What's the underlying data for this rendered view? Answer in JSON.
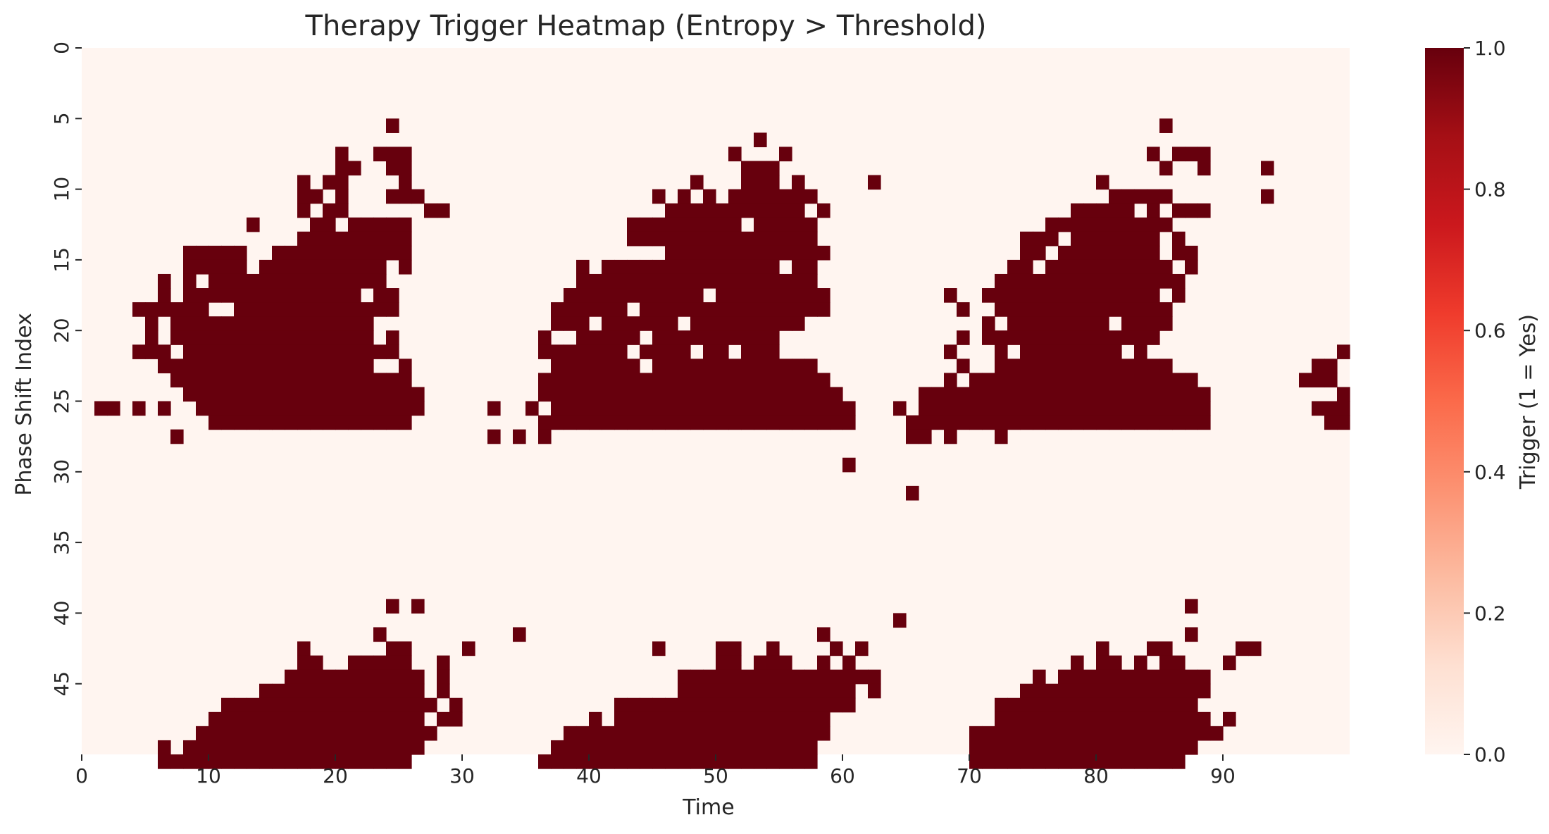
{
  "chart_data": {
    "type": "heatmap",
    "title": "Therapy Trigger Heatmap (Entropy > Threshold)",
    "xlabel": "Time",
    "ylabel": "Phase Shift Index",
    "x_range": [
      0,
      100
    ],
    "y_range": [
      0,
      50
    ],
    "x_ticks": [
      0,
      10,
      20,
      30,
      40,
      50,
      60,
      70,
      80,
      90
    ],
    "y_ticks": [
      0,
      5,
      10,
      15,
      20,
      25,
      30,
      35,
      40,
      45
    ],
    "colorbar": {
      "label": "Trigger (1 = Yes)",
      "ticks": [
        "0.0",
        "0.2",
        "0.4",
        "0.6",
        "0.8",
        "1.0"
      ],
      "colors": [
        "#fff5f0",
        "#fee0d2",
        "#fcbba1",
        "#fc9272",
        "#fb6a4a",
        "#ef3b2c",
        "#cb181d",
        "#a50f15",
        "#67000d"
      ]
    },
    "zero_color": "#fff5f0",
    "one_color": "#67000d",
    "trigger_rows": [
      [],
      [],
      [],
      [],
      [],
      [
        24,
        85
      ],
      [
        53
      ],
      [
        20,
        23,
        24,
        25,
        51,
        55,
        84,
        86,
        87,
        88
      ],
      [
        20,
        21,
        24,
        25,
        52,
        53,
        54,
        85,
        88,
        93
      ],
      [
        17,
        19,
        20,
        25,
        48,
        52,
        53,
        54,
        56,
        62,
        80
      ],
      [
        17,
        18,
        20,
        24,
        25,
        26,
        45,
        47,
        49,
        51,
        52,
        53,
        54,
        55,
        56,
        57,
        81,
        82,
        83,
        84,
        85,
        93
      ],
      [
        17,
        19,
        20,
        27,
        28,
        46,
        47,
        48,
        49,
        50,
        51,
        52,
        53,
        54,
        55,
        56,
        58,
        78,
        79,
        80,
        81,
        82,
        84,
        86,
        87,
        88
      ],
      [
        13,
        18,
        19,
        21,
        22,
        23,
        24,
        25,
        43,
        44,
        45,
        46,
        47,
        48,
        49,
        50,
        51,
        53,
        54,
        55,
        56,
        57,
        76,
        77,
        78,
        79,
        80,
        81,
        82,
        83,
        84,
        85
      ],
      [
        17,
        18,
        19,
        20,
        21,
        22,
        23,
        24,
        25,
        43,
        44,
        45,
        46,
        47,
        48,
        49,
        50,
        51,
        52,
        53,
        54,
        55,
        56,
        57,
        74,
        75,
        76,
        78,
        79,
        80,
        81,
        82,
        83,
        84,
        86
      ],
      [
        8,
        9,
        10,
        11,
        12,
        15,
        16,
        17,
        18,
        19,
        20,
        21,
        22,
        23,
        24,
        25,
        46,
        47,
        48,
        49,
        50,
        51,
        52,
        53,
        54,
        55,
        56,
        57,
        58,
        74,
        75,
        77,
        78,
        79,
        80,
        81,
        82,
        83,
        84,
        86,
        87
      ],
      [
        8,
        9,
        10,
        11,
        12,
        14,
        15,
        16,
        17,
        18,
        19,
        20,
        21,
        22,
        23,
        25,
        39,
        41,
        42,
        43,
        44,
        45,
        46,
        47,
        48,
        49,
        50,
        51,
        52,
        53,
        54,
        56,
        57,
        73,
        74,
        76,
        77,
        78,
        79,
        80,
        81,
        82,
        83,
        84,
        85,
        87
      ],
      [
        6,
        8,
        10,
        11,
        12,
        13,
        14,
        15,
        16,
        17,
        18,
        19,
        20,
        21,
        22,
        23,
        39,
        40,
        41,
        42,
        43,
        44,
        45,
        46,
        47,
        48,
        49,
        50,
        51,
        52,
        53,
        54,
        55,
        56,
        57,
        72,
        73,
        74,
        75,
        76,
        77,
        78,
        79,
        80,
        81,
        82,
        83,
        84,
        85,
        86
      ],
      [
        6,
        8,
        9,
        10,
        11,
        12,
        13,
        14,
        15,
        16,
        17,
        18,
        19,
        20,
        21,
        23,
        24,
        38,
        39,
        40,
        41,
        42,
        43,
        44,
        45,
        46,
        47,
        48,
        50,
        51,
        52,
        53,
        54,
        55,
        56,
        57,
        58,
        68,
        71,
        72,
        73,
        74,
        75,
        76,
        77,
        78,
        79,
        80,
        81,
        82,
        83,
        84,
        86
      ],
      [
        4,
        5,
        6,
        7,
        8,
        9,
        12,
        13,
        14,
        15,
        16,
        17,
        18,
        19,
        20,
        21,
        22,
        23,
        24,
        37,
        38,
        39,
        40,
        41,
        42,
        44,
        45,
        46,
        47,
        48,
        49,
        50,
        51,
        52,
        53,
        54,
        55,
        56,
        57,
        58,
        69,
        72,
        73,
        74,
        75,
        76,
        77,
        78,
        79,
        80,
        81,
        82,
        83,
        84,
        85
      ],
      [
        5,
        7,
        8,
        9,
        10,
        11,
        12,
        13,
        14,
        15,
        16,
        17,
        18,
        19,
        20,
        21,
        22,
        37,
        38,
        39,
        41,
        42,
        43,
        44,
        45,
        46,
        48,
        49,
        50,
        51,
        52,
        53,
        54,
        55,
        56,
        71,
        73,
        74,
        75,
        76,
        77,
        78,
        79,
        80,
        82,
        83,
        84,
        85
      ],
      [
        5,
        7,
        8,
        9,
        10,
        11,
        12,
        13,
        14,
        15,
        16,
        17,
        18,
        19,
        20,
        21,
        22,
        24,
        36,
        39,
        40,
        41,
        42,
        43,
        45,
        46,
        47,
        48,
        49,
        50,
        51,
        52,
        53,
        54,
        69,
        71,
        72,
        73,
        74,
        75,
        76,
        77,
        78,
        79,
        80,
        81,
        82,
        83,
        84
      ],
      [
        4,
        5,
        6,
        8,
        9,
        10,
        11,
        12,
        13,
        14,
        15,
        16,
        17,
        18,
        19,
        20,
        21,
        22,
        23,
        24,
        36,
        37,
        38,
        39,
        40,
        41,
        42,
        44,
        45,
        46,
        47,
        49,
        50,
        52,
        53,
        54,
        68,
        72,
        74,
        75,
        76,
        77,
        78,
        79,
        80,
        81,
        83,
        99
      ],
      [
        6,
        7,
        8,
        9,
        10,
        11,
        12,
        13,
        14,
        15,
        16,
        17,
        18,
        19,
        20,
        21,
        22,
        25,
        37,
        38,
        39,
        40,
        41,
        42,
        43,
        45,
        46,
        47,
        48,
        49,
        50,
        51,
        52,
        53,
        54,
        55,
        56,
        57,
        69,
        72,
        73,
        74,
        75,
        76,
        77,
        78,
        79,
        80,
        81,
        82,
        83,
        84,
        85,
        97,
        98
      ],
      [
        7,
        8,
        9,
        10,
        11,
        12,
        13,
        14,
        15,
        16,
        17,
        18,
        19,
        20,
        21,
        22,
        23,
        24,
        25,
        36,
        37,
        38,
        39,
        40,
        41,
        42,
        43,
        44,
        45,
        46,
        47,
        48,
        49,
        50,
        51,
        52,
        53,
        54,
        55,
        56,
        57,
        58,
        68,
        70,
        71,
        72,
        73,
        74,
        75,
        76,
        77,
        78,
        79,
        80,
        81,
        82,
        83,
        84,
        85,
        86,
        87,
        96,
        97,
        98
      ],
      [
        8,
        9,
        10,
        11,
        12,
        13,
        14,
        15,
        16,
        17,
        18,
        19,
        20,
        21,
        22,
        23,
        24,
        25,
        26,
        36,
        37,
        38,
        39,
        40,
        41,
        42,
        43,
        44,
        45,
        46,
        47,
        48,
        49,
        50,
        51,
        52,
        53,
        54,
        55,
        56,
        57,
        58,
        59,
        66,
        67,
        68,
        69,
        70,
        71,
        72,
        73,
        74,
        75,
        76,
        77,
        78,
        79,
        80,
        81,
        82,
        83,
        84,
        85,
        86,
        87,
        88,
        99
      ],
      [
        1,
        2,
        4,
        6,
        9,
        10,
        11,
        12,
        13,
        14,
        15,
        16,
        17,
        18,
        19,
        20,
        21,
        22,
        23,
        24,
        25,
        26,
        32,
        35,
        37,
        38,
        39,
        40,
        41,
        42,
        43,
        44,
        45,
        46,
        47,
        48,
        49,
        50,
        51,
        52,
        53,
        54,
        55,
        56,
        57,
        58,
        59,
        60,
        64,
        66,
        67,
        68,
        69,
        70,
        71,
        72,
        73,
        74,
        75,
        76,
        77,
        78,
        79,
        80,
        81,
        82,
        83,
        84,
        85,
        86,
        87,
        88,
        97,
        98,
        99
      ],
      [
        10,
        11,
        12,
        13,
        14,
        15,
        16,
        17,
        18,
        19,
        20,
        21,
        22,
        23,
        24,
        25,
        36,
        37,
        38,
        39,
        40,
        41,
        42,
        43,
        44,
        45,
        46,
        47,
        48,
        49,
        50,
        51,
        52,
        53,
        54,
        55,
        56,
        57,
        58,
        59,
        60,
        65,
        66,
        67,
        68,
        69,
        70,
        71,
        72,
        73,
        74,
        75,
        76,
        77,
        78,
        79,
        80,
        81,
        82,
        83,
        84,
        85,
        86,
        87,
        88,
        98,
        99
      ],
      [
        7,
        32,
        34,
        36,
        65,
        66,
        68,
        72
      ],
      [],
      [
        60
      ],
      [],
      [
        65
      ],
      [],
      [],
      [],
      [],
      [],
      [],
      [],
      [
        24,
        26,
        87
      ],
      [
        64
      ],
      [
        23,
        34,
        58,
        87
      ],
      [
        17,
        24,
        25,
        30,
        45,
        50,
        51,
        54,
        59,
        61,
        80,
        84,
        85,
        91,
        92
      ],
      [
        17,
        18,
        21,
        22,
        23,
        24,
        25,
        28,
        50,
        51,
        53,
        54,
        55,
        58,
        60,
        78,
        80,
        81,
        83,
        85,
        86,
        90
      ],
      [
        16,
        17,
        18,
        19,
        20,
        21,
        22,
        23,
        24,
        25,
        26,
        28,
        47,
        48,
        49,
        50,
        51,
        52,
        53,
        54,
        55,
        56,
        57,
        58,
        59,
        60,
        61,
        62,
        75,
        77,
        78,
        79,
        80,
        81,
        82,
        83,
        84,
        85,
        86,
        87,
        88
      ],
      [
        14,
        15,
        16,
        17,
        18,
        19,
        20,
        21,
        22,
        23,
        24,
        25,
        26,
        28,
        47,
        48,
        49,
        50,
        51,
        52,
        53,
        54,
        55,
        56,
        57,
        58,
        59,
        60,
        62,
        74,
        75,
        76,
        77,
        78,
        79,
        80,
        81,
        82,
        83,
        84,
        85,
        86,
        87,
        88
      ],
      [
        11,
        12,
        13,
        14,
        15,
        16,
        17,
        18,
        19,
        20,
        21,
        22,
        23,
        24,
        25,
        26,
        27,
        29,
        42,
        43,
        44,
        45,
        46,
        47,
        48,
        49,
        50,
        51,
        52,
        53,
        54,
        55,
        56,
        57,
        58,
        59,
        60,
        72,
        73,
        74,
        75,
        76,
        77,
        78,
        79,
        80,
        81,
        82,
        83,
        84,
        85,
        86,
        87
      ],
      [
        10,
        11,
        12,
        13,
        14,
        15,
        16,
        17,
        18,
        19,
        20,
        21,
        22,
        23,
        24,
        25,
        26,
        28,
        29,
        40,
        42,
        43,
        44,
        45,
        46,
        47,
        48,
        49,
        50,
        51,
        52,
        53,
        54,
        55,
        56,
        57,
        58,
        72,
        73,
        74,
        75,
        76,
        77,
        78,
        79,
        80,
        81,
        82,
        83,
        84,
        85,
        86,
        87,
        88,
        90
      ],
      [
        9,
        10,
        11,
        12,
        13,
        14,
        15,
        16,
        17,
        18,
        19,
        20,
        21,
        22,
        23,
        24,
        25,
        26,
        27,
        38,
        39,
        40,
        41,
        42,
        43,
        44,
        45,
        46,
        47,
        48,
        49,
        50,
        51,
        52,
        53,
        54,
        55,
        56,
        57,
        58,
        70,
        71,
        72,
        73,
        74,
        75,
        76,
        77,
        78,
        79,
        80,
        81,
        82,
        83,
        84,
        85,
        86,
        87,
        88,
        89
      ],
      [
        6,
        8,
        9,
        10,
        11,
        12,
        13,
        14,
        15,
        16,
        17,
        18,
        19,
        20,
        21,
        22,
        23,
        24,
        25,
        26,
        37,
        38,
        39,
        40,
        41,
        42,
        43,
        44,
        45,
        46,
        47,
        48,
        49,
        50,
        51,
        52,
        53,
        54,
        55,
        56,
        57,
        70,
        71,
        72,
        73,
        74,
        75,
        76,
        77,
        78,
        79,
        80,
        81,
        82,
        83,
        84,
        85,
        86,
        87
      ],
      [
        6,
        7,
        8,
        9,
        10,
        11,
        12,
        13,
        14,
        15,
        16,
        17,
        18,
        19,
        20,
        21,
        22,
        23,
        24,
        25,
        36,
        37,
        38,
        39,
        40,
        41,
        42,
        43,
        44,
        45,
        46,
        47,
        48,
        49,
        50,
        51,
        52,
        53,
        54,
        55,
        56,
        57,
        70,
        71,
        72,
        73,
        74,
        75,
        76,
        77,
        78,
        79,
        80,
        81,
        82,
        83,
        84,
        85,
        86
      ]
    ]
  }
}
